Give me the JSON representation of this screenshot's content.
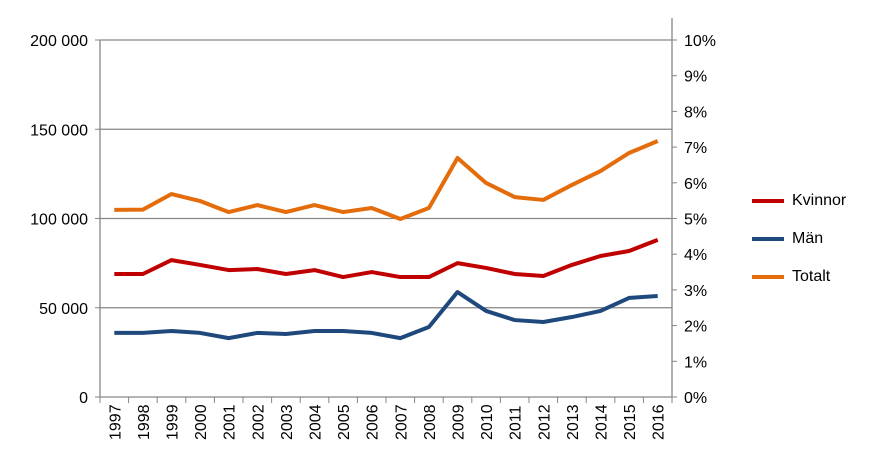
{
  "chart_data": {
    "type": "line",
    "title": "",
    "xlabel": "",
    "ylabel": "",
    "x": [
      "1997",
      "1998",
      "1999",
      "2000",
      "2001",
      "2002",
      "2003",
      "2004",
      "2005",
      "2006",
      "2007",
      "2008",
      "2009",
      "2010",
      "2011",
      "2012",
      "2013",
      "2014",
      "2015",
      "2016"
    ],
    "series": [
      {
        "name": "Kvinnor",
        "color": "#c00000",
        "values": [
          68900,
          68900,
          76700,
          74000,
          71100,
          71700,
          68900,
          71100,
          67200,
          70000,
          67200,
          67200,
          75000,
          72300,
          68900,
          67800,
          74000,
          79000,
          81800,
          88000
        ]
      },
      {
        "name": "Män",
        "color": "#1f497d",
        "values": [
          35900,
          35900,
          37000,
          35900,
          33000,
          35900,
          35300,
          37000,
          37000,
          35900,
          33000,
          39200,
          58800,
          48200,
          43100,
          42000,
          44800,
          48200,
          55500,
          56600
        ]
      },
      {
        "name": "Totalt",
        "color": "#e46c0a",
        "values": [
          104800,
          105000,
          113700,
          109800,
          103600,
          107500,
          103600,
          107500,
          103600,
          105900,
          99700,
          105900,
          133900,
          119900,
          112000,
          110400,
          118800,
          126600,
          136700,
          143400
        ]
      }
    ],
    "ylim": [
      0,
      200000
    ],
    "y_ticks": [
      "0",
      "50 000",
      "100 000",
      "150 000",
      "200 000"
    ],
    "y2lim": [
      0,
      10
    ],
    "y2_ticks": [
      "0%",
      "1%",
      "2%",
      "3%",
      "4%",
      "5%",
      "6%",
      "7%",
      "8%",
      "9%",
      "10%"
    ],
    "grid": true,
    "legend_position": "right"
  }
}
